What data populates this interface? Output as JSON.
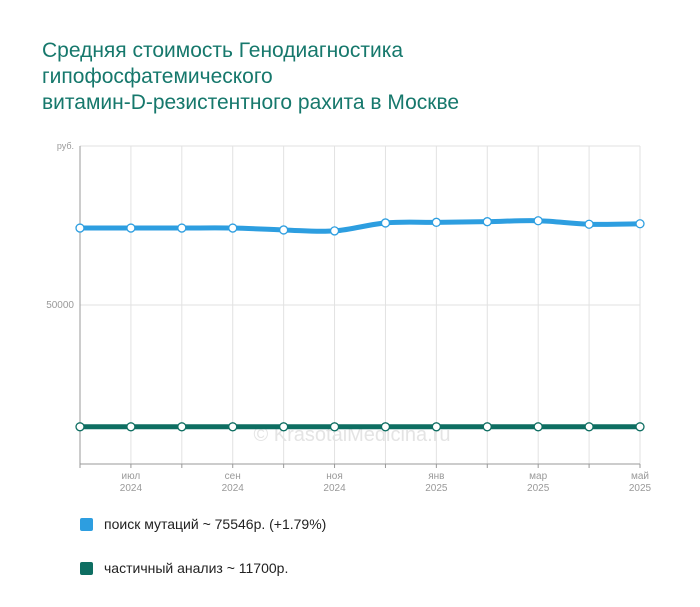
{
  "title_lines": [
    "Средняя стоимость Генодиагностика",
    "гипофосфатемического",
    "витамин-D-резистентного рахита в Москве"
  ],
  "watermark": "© KrasotaiMedicina.ru",
  "colors": {
    "title": "#16786c",
    "series1": "#2d9ee0",
    "series2": "#0e6e62"
  },
  "legend": [
    {
      "label": "поиск мутаций ~ 75546р. (+1.79%)",
      "color": "#2d9ee0"
    },
    {
      "label": "частичный анализ ~ 11700р.",
      "color": "#0e6e62"
    }
  ],
  "chart_data": {
    "type": "line",
    "y_unit_label": "руб.",
    "ylim": [
      0,
      100000
    ],
    "y_ticks": [
      {
        "value": 50000,
        "label": "50000"
      }
    ],
    "x": [
      "2024-06",
      "2024-07",
      "2024-08",
      "2024-09",
      "2024-10",
      "2024-11",
      "2024-12",
      "2025-01",
      "2025-02",
      "2025-03",
      "2025-04",
      "2025-05"
    ],
    "x_tick_labels": [
      {
        "index": 1,
        "month": "июл",
        "year": "2024"
      },
      {
        "index": 3,
        "month": "сен",
        "year": "2024"
      },
      {
        "index": 5,
        "month": "ноя",
        "year": "2024"
      },
      {
        "index": 7,
        "month": "янв",
        "year": "2025"
      },
      {
        "index": 9,
        "month": "мар",
        "year": "2025"
      },
      {
        "index": 11,
        "month": "май",
        "year": "2025"
      }
    ],
    "grid": true,
    "series": [
      {
        "name": "поиск мутаций",
        "color": "#2d9ee0",
        "values": [
          74200,
          74200,
          74200,
          74200,
          73600,
          73300,
          75800,
          76000,
          76200,
          76500,
          75400,
          75546
        ]
      },
      {
        "name": "частичный анализ",
        "color": "#0e6e62",
        "values": [
          11700,
          11700,
          11700,
          11700,
          11700,
          11700,
          11700,
          11700,
          11700,
          11700,
          11700,
          11700
        ]
      }
    ]
  }
}
